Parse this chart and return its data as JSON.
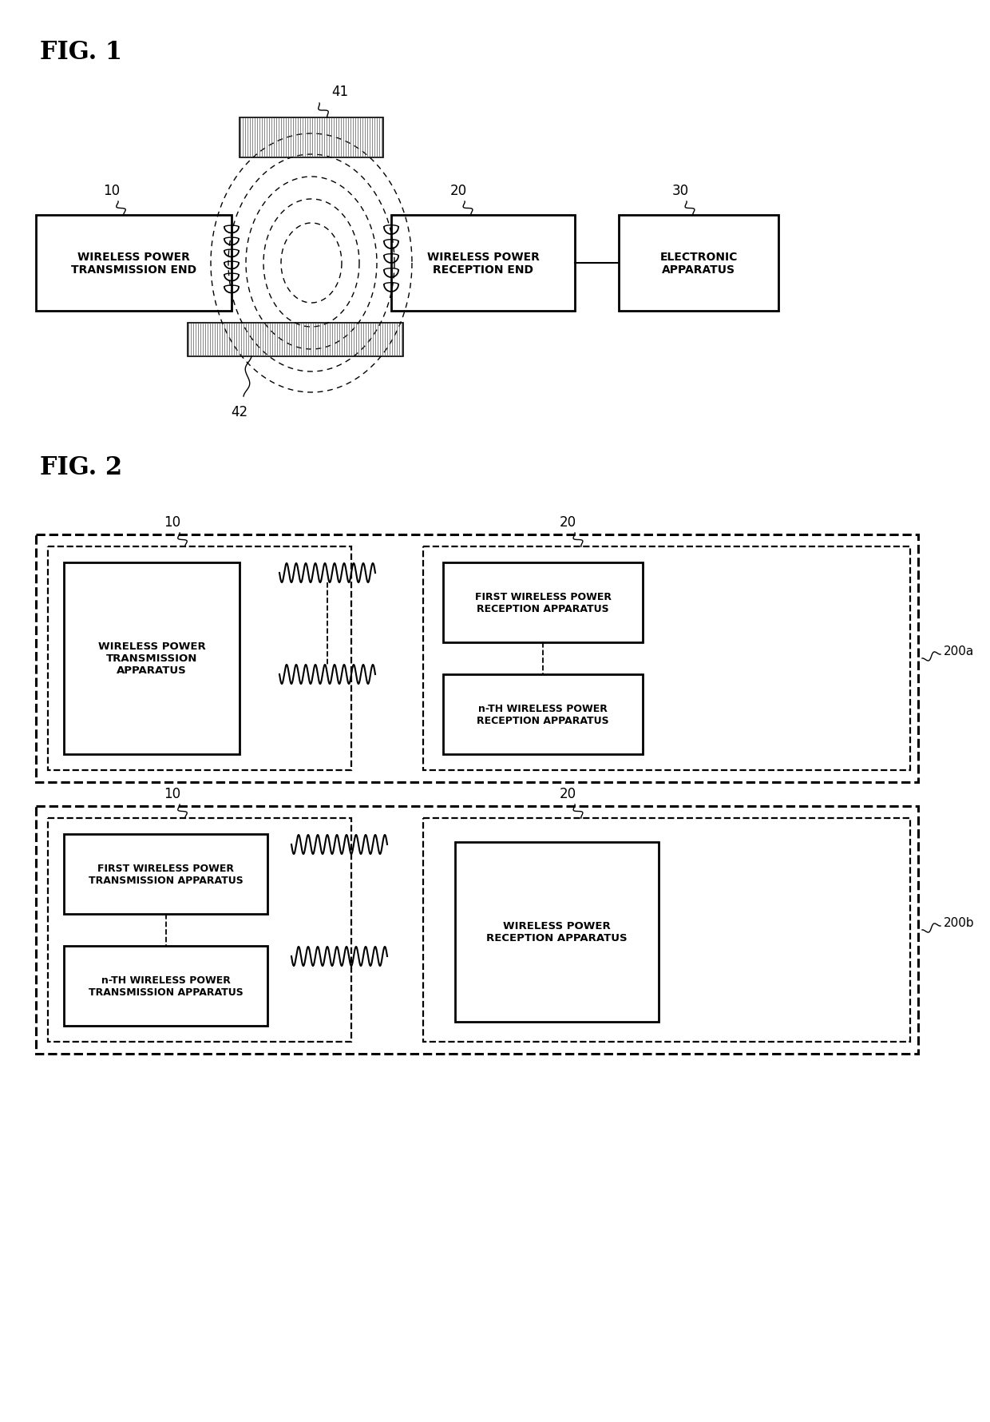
{
  "background_color": "#ffffff",
  "fig_width": 12.4,
  "fig_height": 17.81,
  "fig1_title": "FIG. 1",
  "fig2_title": "FIG. 2",
  "label_10": "10",
  "label_20": "20",
  "label_30": "30",
  "label_41": "41",
  "label_42": "42",
  "label_200a": "200a",
  "label_200b": "200b",
  "box1_text": "WIRELESS POWER\nTRANSMISSION END",
  "box2_text": "WIRELESS POWER\nRECEPTION END",
  "box3_text": "ELECTRONIC\nAPPARATUS",
  "fig2_box_tx": "WIRELESS POWER\nTRANSMISSION\nAPPARATUS",
  "fig2_box_rx1": "FIRST WIRELESS POWER\nRECEPTION APPARATUS",
  "fig2_box_rxn": "n-TH WIRELESS POWER\nRECEPTION APPARATUS",
  "fig2_box_tx1": "FIRST WIRELESS POWER\nTRANSMISSION APPARATUS",
  "fig2_box_txn": "n-TH WIRELESS POWER\nTRANSMISSION APPARATUS",
  "fig2_box_rx": "WIRELESS POWER\nRECEPTION APPARATUS"
}
